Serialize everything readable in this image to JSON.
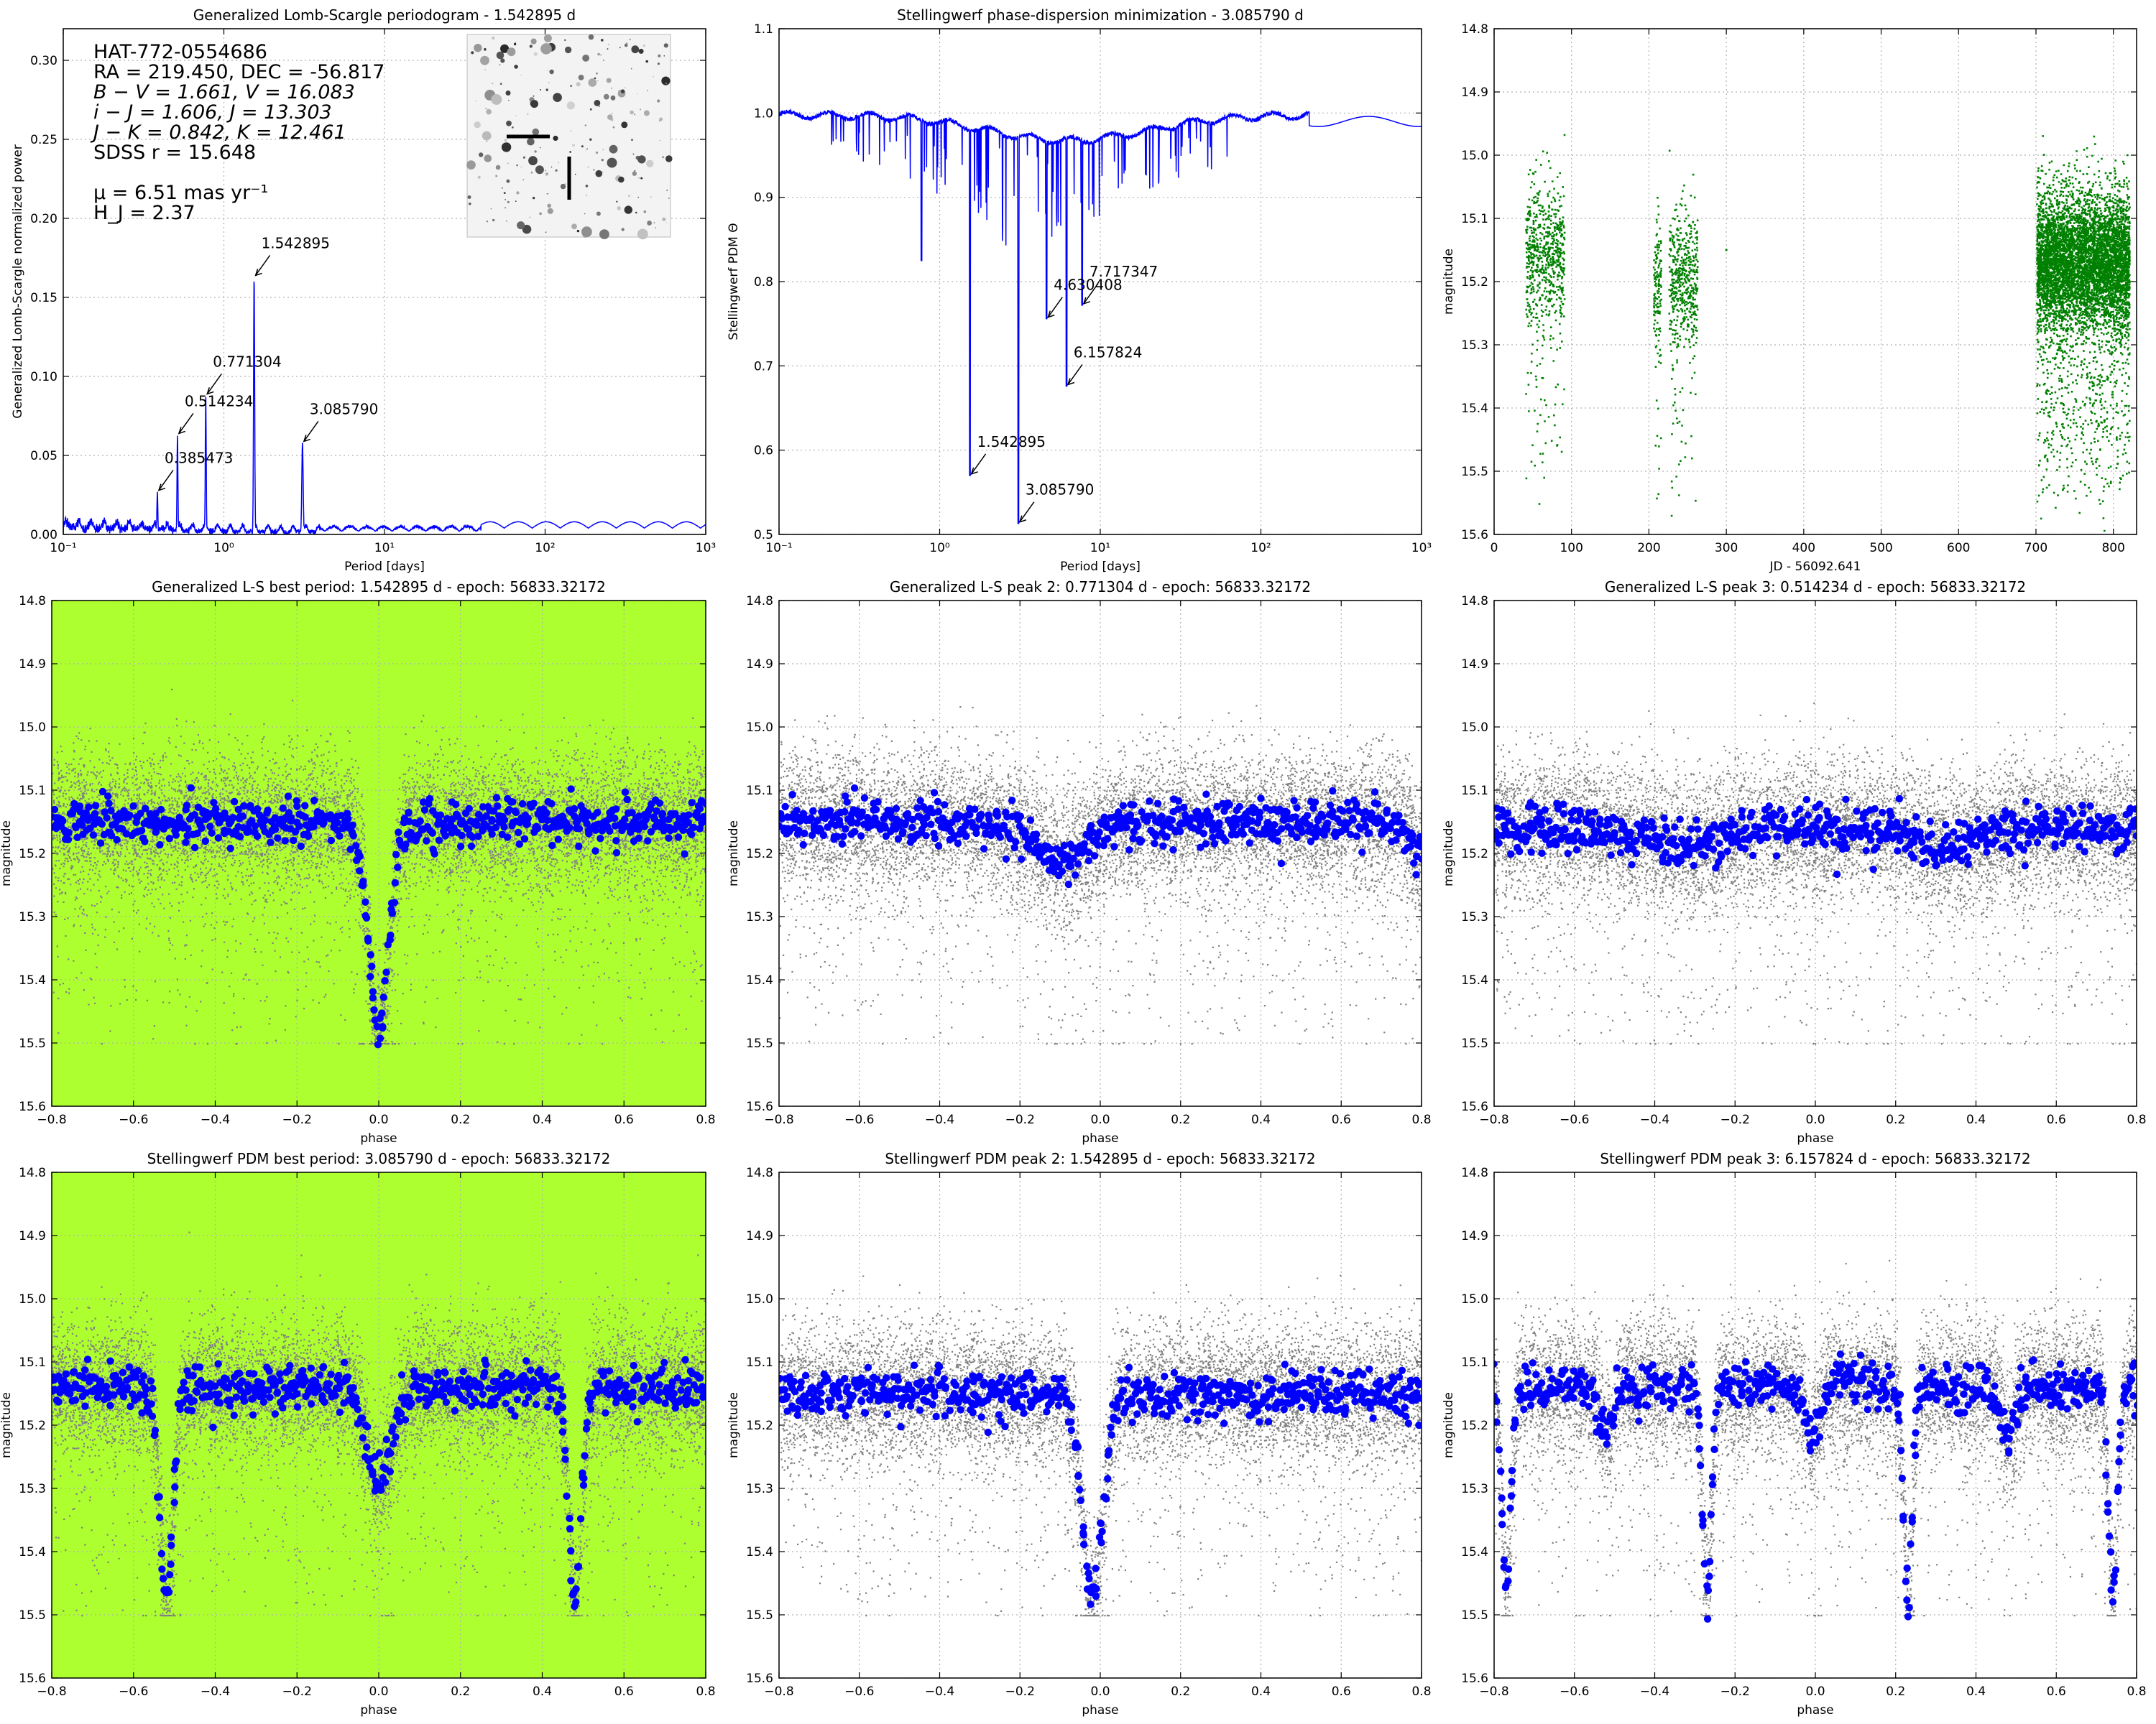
{
  "figure": {
    "object": {
      "name": "HAT-772-0554686",
      "coords": "RA = 219.450, DEC = -56.817",
      "bv": "B − V = 1.661, V = 16.083",
      "ij": "i − J = 1.606, J = 13.303",
      "jk": "J − K = 0.842, K = 12.461",
      "sdss": "SDSS r = 15.648",
      "pm": "μ = 6.51 mas yr⁻¹",
      "hj": "H_J = 2.37"
    },
    "colors": {
      "periodogram_line": "#0000ff",
      "timeseries_points": "#008000",
      "phased_points": "#808080",
      "binned_points": "#0000ff",
      "best_period_background": "#adff2f",
      "grid": "#b0b0b0"
    }
  },
  "chart_data": [
    {
      "id": "gls",
      "type": "line",
      "title": "Generalized Lomb-Scargle periodogram - 1.542895 d",
      "xlabel": "Period [days]",
      "ylabel": "Generalized Lomb-Scargle normalized power",
      "xscale": "log",
      "xlim": [
        0.1,
        1000
      ],
      "ylim": [
        0.0,
        0.32
      ],
      "xticks": [
        0.1,
        1,
        10,
        100,
        1000
      ],
      "xtick_labels": [
        "10⁻¹",
        "10⁰",
        "10¹",
        "10²",
        "10³"
      ],
      "yticks": [
        0.0,
        0.05,
        0.1,
        0.15,
        0.2,
        0.25,
        0.3
      ],
      "ytick_labels": [
        "0.00",
        "0.05",
        "0.10",
        "0.15",
        "0.20",
        "0.25",
        "0.30"
      ],
      "grid": true,
      "peaks": [
        {
          "x": 0.385473,
          "y": 0.027,
          "label": "0.385473"
        },
        {
          "x": 0.514234,
          "y": 0.063,
          "label": "0.514234"
        },
        {
          "x": 0.771304,
          "y": 0.088,
          "label": "0.771304"
        },
        {
          "x": 1.542895,
          "y": 0.163,
          "label": "1.542895"
        },
        {
          "x": 3.08579,
          "y": 0.058,
          "label": "3.085790"
        }
      ]
    },
    {
      "id": "pdm",
      "type": "line",
      "title": "Stellingwerf phase-dispersion minimization - 3.085790 d",
      "xlabel": "Period [days]",
      "ylabel": "Stellingwerf PDM Θ",
      "xscale": "log",
      "xlim": [
        0.1,
        1000
      ],
      "ylim": [
        0.5,
        1.1
      ],
      "xticks": [
        0.1,
        1,
        10,
        100,
        1000
      ],
      "xtick_labels": [
        "10⁻¹",
        "10⁰",
        "10¹",
        "10²",
        "10³"
      ],
      "yticks": [
        0.5,
        0.6,
        0.7,
        0.8,
        0.9,
        1.0,
        1.1
      ],
      "ytick_labels": [
        "0.5",
        "0.6",
        "0.7",
        "0.8",
        "0.9",
        "1.0",
        "1.1"
      ],
      "grid": true,
      "peaks": [
        {
          "x": 1.542895,
          "y": 0.57,
          "label": "1.542895"
        },
        {
          "x": 3.08579,
          "y": 0.513,
          "label": "3.085790"
        },
        {
          "x": 4.630408,
          "y": 0.756,
          "label": "4.630408"
        },
        {
          "x": 6.157824,
          "y": 0.676,
          "label": "6.157824"
        },
        {
          "x": 7.717347,
          "y": 0.772,
          "label": "7.717347"
        }
      ]
    },
    {
      "id": "timeseries",
      "type": "scatter",
      "title": "",
      "xlabel": "JD - 56092.641",
      "ylabel": "magnitude",
      "xlim": [
        0,
        830
      ],
      "ylim": [
        15.6,
        14.8
      ],
      "xticks": [
        0,
        100,
        200,
        300,
        400,
        500,
        600,
        700,
        800
      ],
      "xtick_labels": [
        "0",
        "100",
        "200",
        "300",
        "400",
        "500",
        "600",
        "700",
        "800"
      ],
      "yticks": [
        14.8,
        14.9,
        15.0,
        15.1,
        15.2,
        15.3,
        15.4,
        15.5,
        15.6
      ],
      "ytick_labels": [
        "14.8",
        "14.9",
        "15.0",
        "15.1",
        "15.2",
        "15.3",
        "15.4",
        "15.5",
        "15.6"
      ],
      "grid": true,
      "segments": [
        {
          "start": 40,
          "end": 90,
          "median_mag": 15.16
        },
        {
          "start": 205,
          "end": 215,
          "median_mag": 15.2
        },
        {
          "start": 225,
          "end": 262,
          "median_mag": 15.19
        },
        {
          "start": 700,
          "end": 820,
          "median_mag": 15.17
        }
      ]
    },
    {
      "id": "ls-best",
      "type": "scatter",
      "title": "Generalized L-S best period: 1.542895 d - epoch: 56833.32172",
      "xlabel": "phase",
      "ylabel": "magnitude",
      "xlim": [
        -0.8,
        0.8
      ],
      "ylim": [
        15.6,
        14.8
      ],
      "xticks": [
        -0.8,
        -0.6,
        -0.4,
        -0.2,
        0.0,
        0.2,
        0.4,
        0.6,
        0.8
      ],
      "xtick_labels": [
        "−0.8",
        "−0.6",
        "−0.4",
        "−0.2",
        "0.0",
        "0.2",
        "0.4",
        "0.6",
        "0.8"
      ],
      "yticks": [
        14.8,
        14.9,
        15.0,
        15.1,
        15.2,
        15.3,
        15.4,
        15.5,
        15.6
      ],
      "ytick_labels": [
        "14.8",
        "14.9",
        "15.0",
        "15.1",
        "15.2",
        "15.3",
        "15.4",
        "15.5",
        "15.6"
      ],
      "grid": true,
      "highlight": true,
      "period": 1.542895,
      "baseline_mag": 15.15,
      "dips": [
        {
          "phase": 0.0,
          "depth": 0.33,
          "width": 0.045
        }
      ]
    },
    {
      "id": "ls-peak2",
      "type": "scatter",
      "title": "Generalized L-S peak 2: 0.771304 d - epoch: 56833.32172",
      "xlabel": "phase",
      "ylabel": "magnitude",
      "xlim": [
        -0.8,
        0.8
      ],
      "ylim": [
        15.6,
        14.8
      ],
      "xticks": [
        -0.8,
        -0.6,
        -0.4,
        -0.2,
        0.0,
        0.2,
        0.4,
        0.6,
        0.8
      ],
      "xtick_labels": [
        "−0.8",
        "−0.6",
        "−0.4",
        "−0.2",
        "0.0",
        "0.2",
        "0.4",
        "0.6",
        "0.8"
      ],
      "yticks": [
        14.8,
        14.9,
        15.0,
        15.1,
        15.2,
        15.3,
        15.4,
        15.5,
        15.6
      ],
      "ytick_labels": [
        "14.8",
        "14.9",
        "15.0",
        "15.1",
        "15.2",
        "15.3",
        "15.4",
        "15.5",
        "15.6"
      ],
      "grid": true,
      "highlight": false,
      "period": 0.771304,
      "baseline_mag": 15.15,
      "dips": [
        {
          "phase": -0.1,
          "depth": 0.06,
          "width": 0.12
        },
        {
          "phase": 0.8,
          "depth": 0.05,
          "width": 0.05
        }
      ]
    },
    {
      "id": "ls-peak3",
      "type": "scatter",
      "title": "Generalized L-S peak 3: 0.514234 d - epoch: 56833.32172",
      "xlabel": "phase",
      "ylabel": "magnitude",
      "xlim": [
        -0.8,
        0.8
      ],
      "ylim": [
        15.6,
        14.8
      ],
      "xticks": [
        -0.8,
        -0.6,
        -0.4,
        -0.2,
        0.0,
        0.2,
        0.4,
        0.6,
        0.8
      ],
      "xtick_labels": [
        "−0.8",
        "−0.6",
        "−0.4",
        "−0.2",
        "0.0",
        "0.2",
        "0.4",
        "0.6",
        "0.8"
      ],
      "yticks": [
        14.8,
        14.9,
        15.0,
        15.1,
        15.2,
        15.3,
        15.4,
        15.5,
        15.6
      ],
      "ytick_labels": [
        "14.8",
        "14.9",
        "15.0",
        "15.1",
        "15.2",
        "15.3",
        "15.4",
        "15.5",
        "15.6"
      ],
      "grid": true,
      "highlight": false,
      "period": 0.514234,
      "baseline_mag": 15.16,
      "dips": [
        {
          "phase": -0.33,
          "depth": 0.03,
          "width": 0.15
        },
        {
          "phase": 0.33,
          "depth": 0.03,
          "width": 0.15
        }
      ]
    },
    {
      "id": "pdm-best",
      "type": "scatter",
      "title": "Stellingwerf PDM best period: 3.085790 d - epoch: 56833.32172",
      "xlabel": "phase",
      "ylabel": "magnitude",
      "xlim": [
        -0.8,
        0.8
      ],
      "ylim": [
        15.6,
        14.8
      ],
      "xticks": [
        -0.8,
        -0.6,
        -0.4,
        -0.2,
        0.0,
        0.2,
        0.4,
        0.6,
        0.8
      ],
      "xtick_labels": [
        "−0.8",
        "−0.6",
        "−0.4",
        "−0.2",
        "0.0",
        "0.2",
        "0.4",
        "0.6",
        "0.8"
      ],
      "yticks": [
        14.8,
        14.9,
        15.0,
        15.1,
        15.2,
        15.3,
        15.4,
        15.5,
        15.6
      ],
      "ytick_labels": [
        "14.8",
        "14.9",
        "15.0",
        "15.1",
        "15.2",
        "15.3",
        "15.4",
        "15.5",
        "15.6"
      ],
      "grid": true,
      "highlight": true,
      "period": 3.08579,
      "baseline_mag": 15.14,
      "dips": [
        {
          "phase": 0.0,
          "depth": 0.15,
          "width": 0.055
        },
        {
          "phase": -0.52,
          "depth": 0.34,
          "width": 0.028
        },
        {
          "phase": 0.48,
          "depth": 0.34,
          "width": 0.028
        }
      ]
    },
    {
      "id": "pdm-peak2",
      "type": "scatter",
      "title": "Stellingwerf PDM peak 2: 1.542895 d - epoch: 56833.32172",
      "xlabel": "phase",
      "ylabel": "magnitude",
      "xlim": [
        -0.8,
        0.8
      ],
      "ylim": [
        15.6,
        14.8
      ],
      "xticks": [
        -0.8,
        -0.6,
        -0.4,
        -0.2,
        0.0,
        0.2,
        0.4,
        0.6,
        0.8
      ],
      "xtick_labels": [
        "−0.8",
        "−0.6",
        "−0.4",
        "−0.2",
        "0.0",
        "0.2",
        "0.4",
        "0.6",
        "0.8"
      ],
      "yticks": [
        14.8,
        14.9,
        15.0,
        15.1,
        15.2,
        15.3,
        15.4,
        15.5,
        15.6
      ],
      "ytick_labels": [
        "14.8",
        "14.9",
        "15.0",
        "15.1",
        "15.2",
        "15.3",
        "15.4",
        "15.5",
        "15.6"
      ],
      "grid": true,
      "highlight": false,
      "period": 1.542895,
      "baseline_mag": 15.15,
      "dips": [
        {
          "phase": -0.02,
          "depth": 0.33,
          "width": 0.045
        }
      ]
    },
    {
      "id": "pdm-peak3",
      "type": "scatter",
      "title": "Stellingwerf PDM peak 3: 6.157824 d - epoch: 56833.32172",
      "xlabel": "phase",
      "ylabel": "magnitude",
      "xlim": [
        -0.8,
        0.8
      ],
      "ylim": [
        15.6,
        14.8
      ],
      "xticks": [
        -0.8,
        -0.6,
        -0.4,
        -0.2,
        0.0,
        0.2,
        0.4,
        0.6,
        0.8
      ],
      "xtick_labels": [
        "−0.8",
        "−0.6",
        "−0.4",
        "−0.2",
        "0.0",
        "0.2",
        "0.4",
        "0.6",
        "0.8"
      ],
      "yticks": [
        14.8,
        14.9,
        15.0,
        15.1,
        15.2,
        15.3,
        15.4,
        15.5,
        15.6
      ],
      "ytick_labels": [
        "14.8",
        "14.9",
        "15.0",
        "15.1",
        "15.2",
        "15.3",
        "15.4",
        "15.5",
        "15.6"
      ],
      "grid": true,
      "highlight": false,
      "period": 6.157824,
      "baseline_mag": 15.14,
      "dips": [
        {
          "phase": -0.77,
          "depth": 0.32,
          "width": 0.02
        },
        {
          "phase": -0.52,
          "depth": 0.07,
          "width": 0.03
        },
        {
          "phase": -0.27,
          "depth": 0.33,
          "width": 0.02
        },
        {
          "phase": -0.01,
          "depth": 0.08,
          "width": 0.03
        },
        {
          "phase": 0.23,
          "depth": 0.33,
          "width": 0.02
        },
        {
          "phase": 0.48,
          "depth": 0.08,
          "width": 0.03
        },
        {
          "phase": 0.74,
          "depth": 0.33,
          "width": 0.02
        }
      ]
    }
  ]
}
